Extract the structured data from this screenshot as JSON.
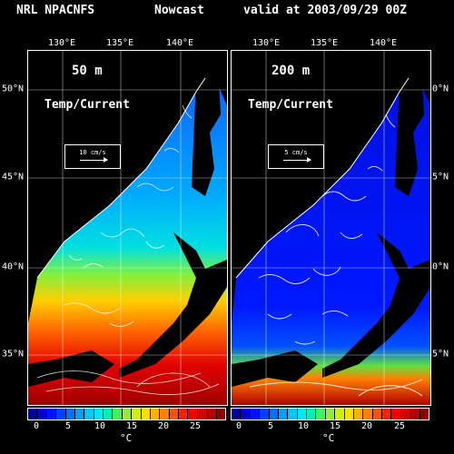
{
  "header": {
    "title": "NRL NPACNFS",
    "mode": "Nowcast",
    "valid": "valid at 2003/09/29 00Z"
  },
  "longitude_labels": [
    "130°E",
    "135°E",
    "140°E"
  ],
  "latitude_labels": [
    "50°N",
    "45°N",
    "40°N",
    "35°N"
  ],
  "panels": [
    {
      "depth": "50 m",
      "variable": "Temp/Current",
      "reference_vector": "10 cm/s"
    },
    {
      "depth": "200 m",
      "variable": "Temp/Current",
      "reference_vector": "5 cm/s"
    }
  ],
  "colorbar": {
    "tick_labels": [
      "0",
      "5",
      "10",
      "15",
      "20",
      "25"
    ],
    "unit": "°C",
    "colors": [
      "#0000a0",
      "#0000d0",
      "#0010ff",
      "#0040ff",
      "#0070ff",
      "#00a0ff",
      "#00c8ff",
      "#00e8f0",
      "#00f0b0",
      "#40f060",
      "#90f030",
      "#d0f000",
      "#ffe000",
      "#ffb000",
      "#ff8000",
      "#ff5000",
      "#ff2000",
      "#f00000",
      "#d00000",
      "#b00000",
      "#900000"
    ]
  }
}
